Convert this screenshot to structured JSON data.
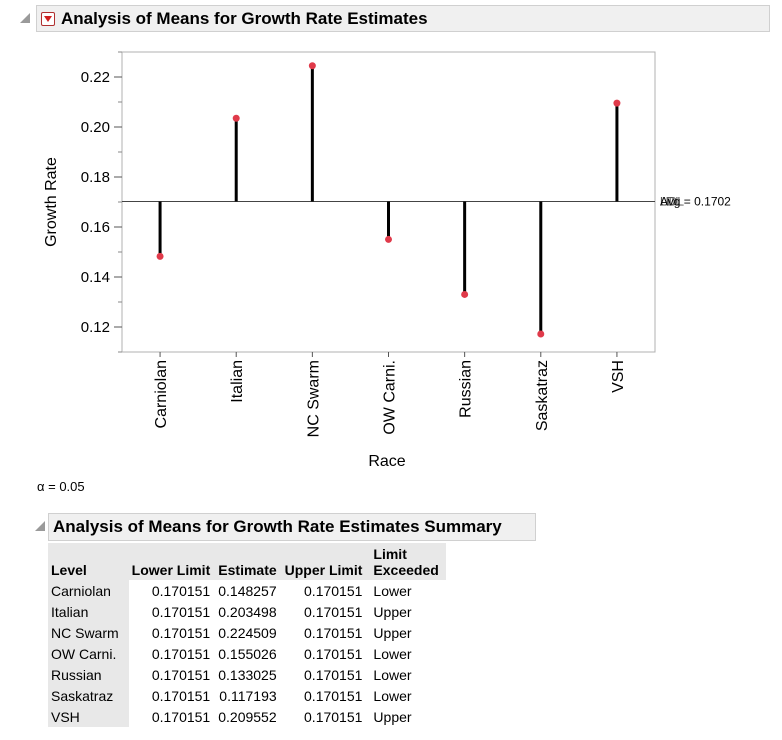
{
  "report": {
    "title": "Analysis of Means for Growth Rate Estimates",
    "alpha_label": "α = 0.05"
  },
  "chart_data": {
    "type": "scatter",
    "title": "",
    "xlabel": "Race",
    "ylabel": "Growth Rate",
    "categories": [
      "Carniolan",
      "Italian",
      "NC Swarm",
      "OW Carni.",
      "Russian",
      "Saskatraz",
      "VSH"
    ],
    "values": [
      0.148257,
      0.203498,
      0.224509,
      0.155026,
      0.133025,
      0.117193,
      0.209552
    ],
    "yticks": [
      "0.12",
      "0.14",
      "0.16",
      "0.18",
      "0.20",
      "0.22"
    ],
    "ylim": [
      0.11,
      0.23
    ],
    "center_line": 0.1702,
    "center_labels": [
      "LDL",
      "UDL",
      "Avg = 0.1702"
    ],
    "point_color": "#e03a4a",
    "grid": false
  },
  "summary": {
    "title": "Analysis of Means for Growth Rate Estimates Summary",
    "columns": [
      "Level",
      "Lower Limit",
      "Estimate",
      "Upper Limit",
      "Limit Exceeded"
    ],
    "rows": [
      [
        "Carniolan",
        "0.170151",
        "0.148257",
        "0.170151",
        "Lower"
      ],
      [
        "Italian",
        "0.170151",
        "0.203498",
        "0.170151",
        "Upper"
      ],
      [
        "NC Swarm",
        "0.170151",
        "0.224509",
        "0.170151",
        "Upper"
      ],
      [
        "OW Carni.",
        "0.170151",
        "0.155026",
        "0.170151",
        "Lower"
      ],
      [
        "Russian",
        "0.170151",
        "0.133025",
        "0.170151",
        "Lower"
      ],
      [
        "Saskatraz",
        "0.170151",
        "0.117193",
        "0.170151",
        "Lower"
      ],
      [
        "VSH",
        "0.170151",
        "0.209552",
        "0.170151",
        "Upper"
      ]
    ]
  }
}
